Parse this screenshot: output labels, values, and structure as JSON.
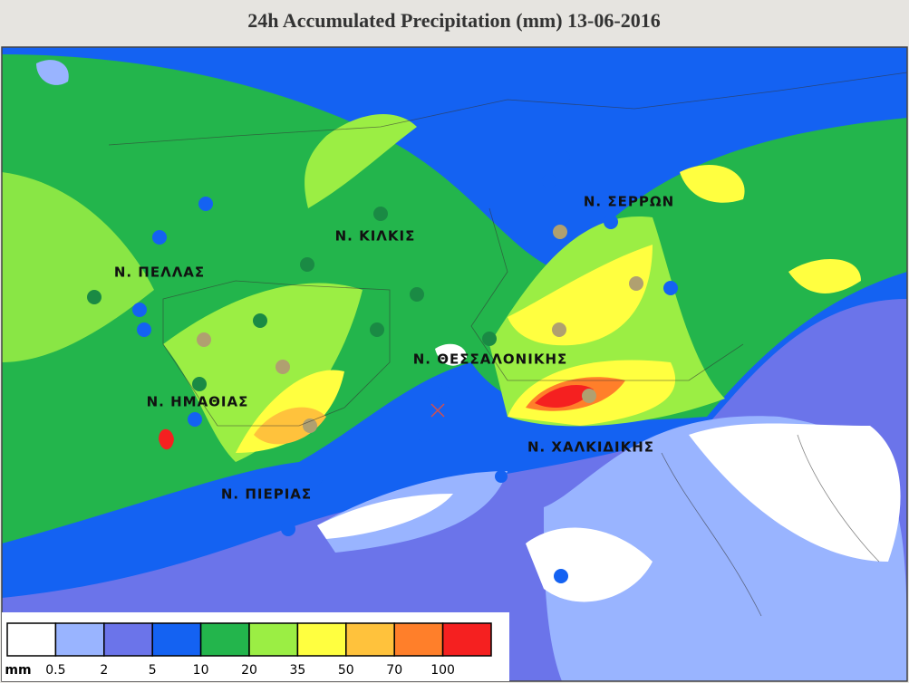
{
  "header": {
    "title": "24h Accumulated Precipitation (mm) 13-06-2016"
  },
  "map": {
    "labels": [
      "Ν. ΚΙΛΚΙΣ",
      "Ν. ΠΕΛΛΑΣ",
      "Ν. ΣΕΡΡΩΝ",
      "Ν. ΘΕΣΣΑΛΟΝΙΚΗΣ",
      "Ν. ΗΜΑΘΙΑΣ",
      "Ν. ΧΑΛΚΙΔΙΚΗΣ",
      "Ν. ΠΙΕΡΙΑΣ"
    ]
  },
  "legend": {
    "unit": "mm",
    "colors": [
      "#ffffff",
      "#99b4ff",
      "#6b74ea",
      "#1462f2",
      "#23b54c",
      "#9bee44",
      "#ffff40",
      "#ffc23c",
      "#ff7f2a",
      "#f52020"
    ],
    "thresholds": [
      0.5,
      2,
      5,
      10,
      20,
      35,
      50,
      70,
      100
    ]
  }
}
